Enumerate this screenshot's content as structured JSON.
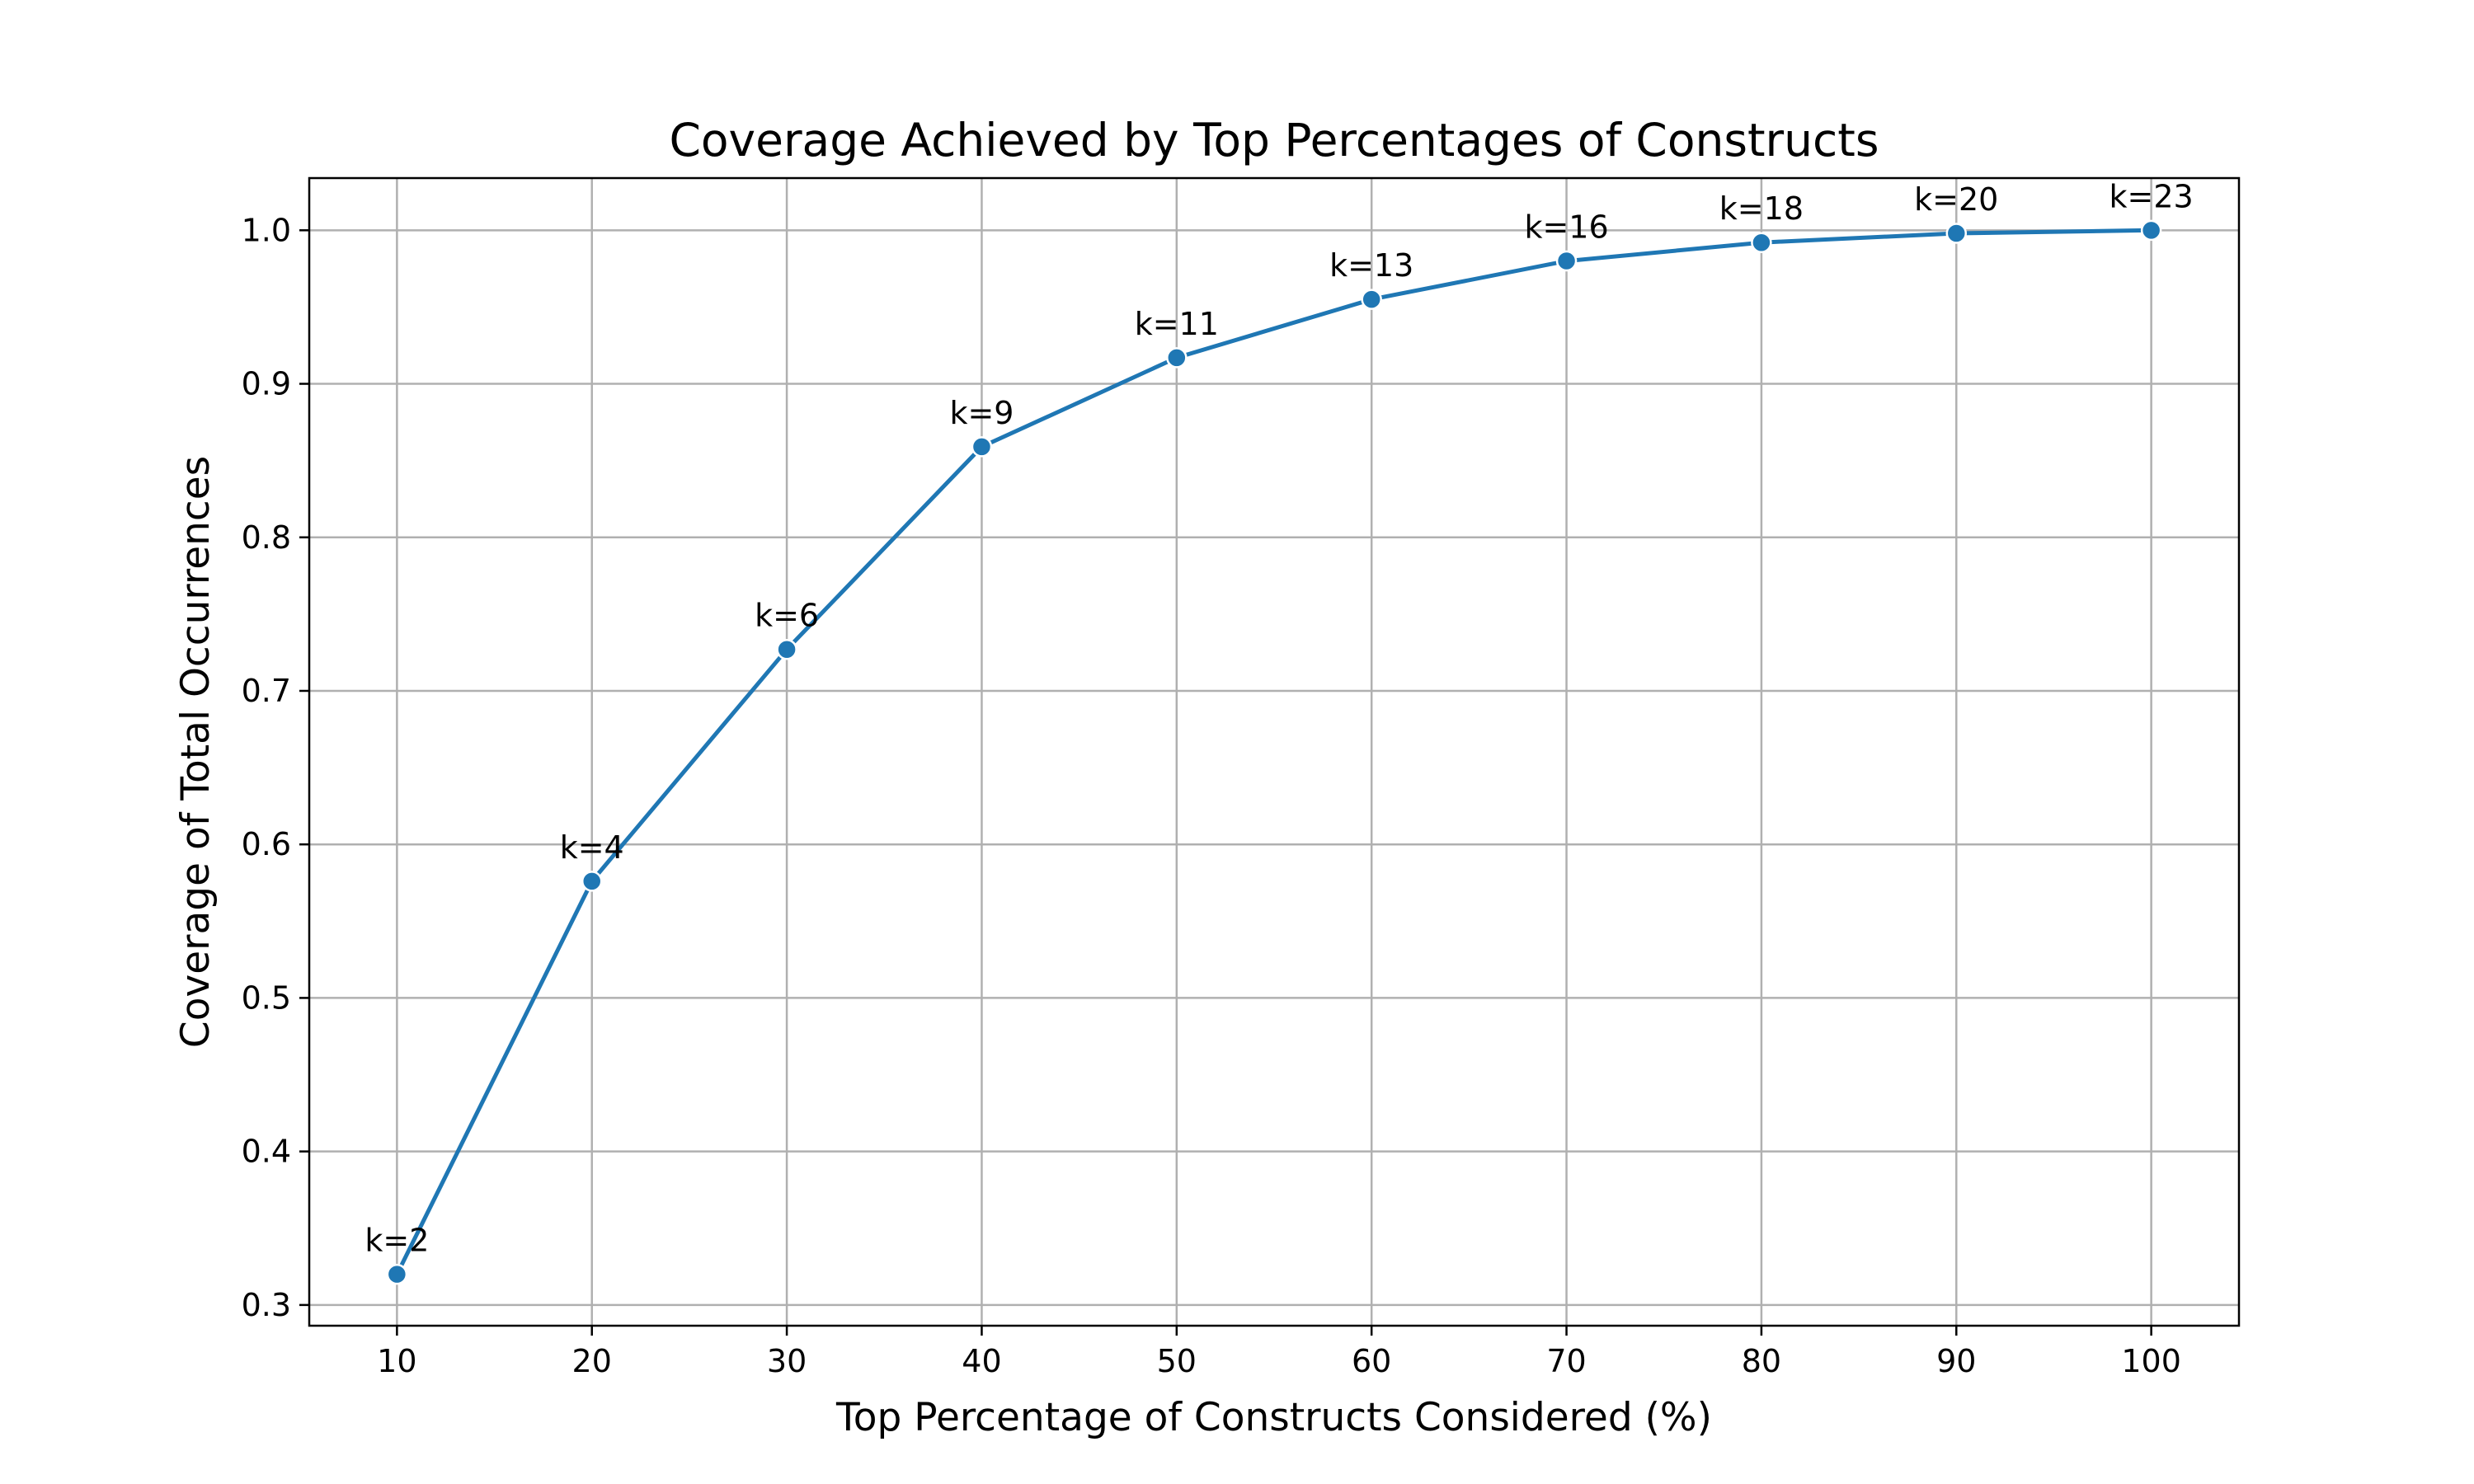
{
  "chart_data": {
    "type": "line",
    "title": "Coverage Achieved by Top Percentages of Constructs",
    "xlabel": "Top Percentage of Constructs Considered (%)",
    "ylabel": "Coverage of Total Occurrences",
    "xlim": [
      5.5,
      104.5
    ],
    "ylim": [
      0.2865,
      1.034
    ],
    "x_ticks": [
      10,
      20,
      30,
      40,
      50,
      60,
      70,
      80,
      90,
      100
    ],
    "x_tick_labels": [
      "10",
      "20",
      "30",
      "40",
      "50",
      "60",
      "70",
      "80",
      "90",
      "100"
    ],
    "y_ticks": [
      0.3,
      0.4,
      0.5,
      0.6,
      0.7,
      0.8,
      0.9,
      1.0
    ],
    "y_tick_labels": [
      "0.3",
      "0.4",
      "0.5",
      "0.6",
      "0.7",
      "0.8",
      "0.9",
      "1.0"
    ],
    "grid": true,
    "series": [
      {
        "color": "#1f77b4",
        "x": [
          10,
          20,
          30,
          40,
          50,
          60,
          70,
          80,
          90,
          100
        ],
        "y": [
          0.32,
          0.576,
          0.727,
          0.859,
          0.917,
          0.955,
          0.98,
          0.992,
          0.998,
          1.0
        ],
        "labels": [
          "k=2",
          "k=4",
          "k=6",
          "k=9",
          "k=11",
          "k=13",
          "k=16",
          "k=18",
          "k=20",
          "k=23"
        ]
      }
    ]
  }
}
